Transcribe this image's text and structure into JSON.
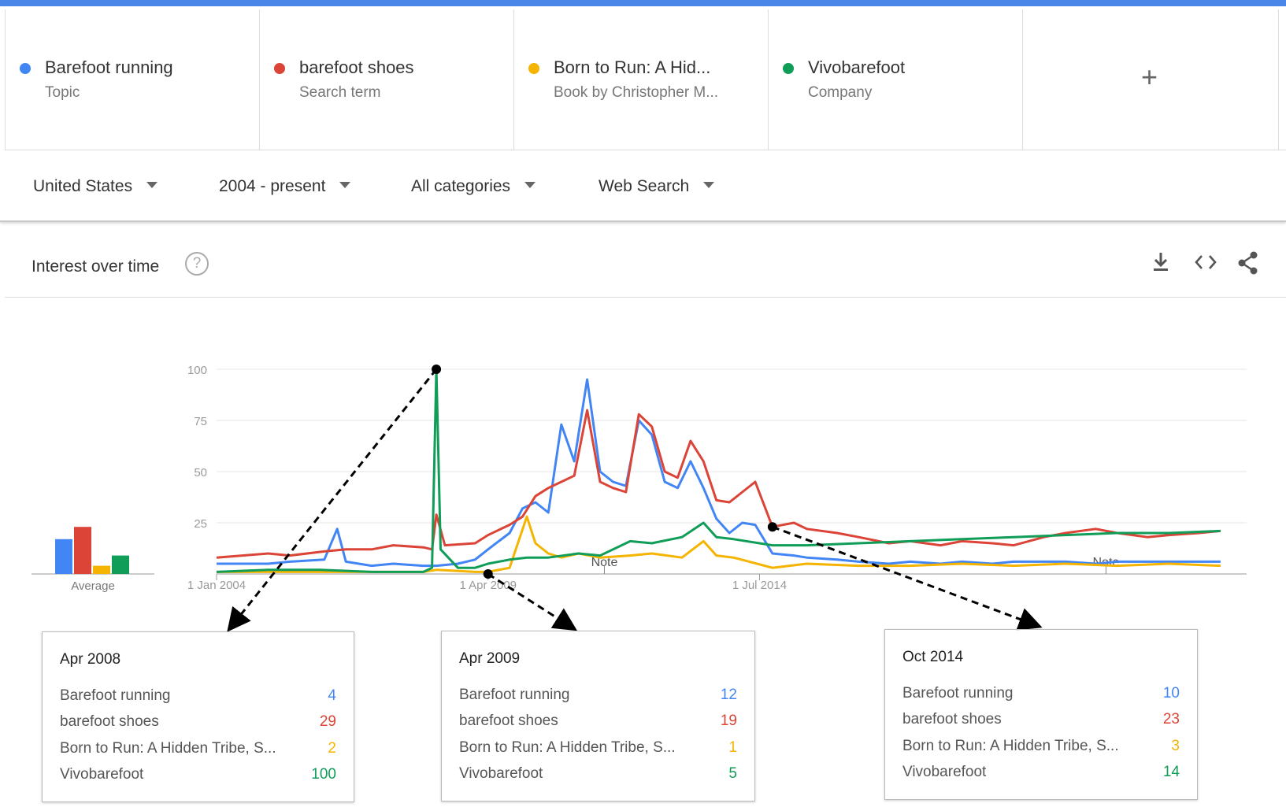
{
  "terms": [
    {
      "name": "Barefoot running",
      "sub": "Topic",
      "color": "#4285f4"
    },
    {
      "name": "barefoot shoes",
      "sub": "Search term",
      "color": "#db4437"
    },
    {
      "name": "Born to Run: A Hid...",
      "sub": "Book by Christopher M...",
      "color": "#f4b400"
    },
    {
      "name": "Vivobarefoot",
      "sub": "Company",
      "color": "#0f9d58"
    }
  ],
  "add_label": "+",
  "filters": {
    "region": "United States",
    "period": "2004 - present",
    "category": "All categories",
    "search_type": "Web Search"
  },
  "card": {
    "title": "Interest over time",
    "help": "?"
  },
  "icons": {
    "download": "download-icon",
    "embed": "embed-icon",
    "share": "share-icon"
  },
  "chart_data": {
    "type": "line",
    "title": "Interest over time",
    "x_ticks": [
      "1 Jan 2004",
      "1 Apr 2009",
      "1 Jul 2014"
    ],
    "y_ticks": [
      100,
      75,
      50,
      25
    ],
    "ylim": [
      0,
      100
    ],
    "average_label": "Average",
    "note_label": "Note",
    "averages": [
      17,
      23,
      4,
      9
    ],
    "grid": true,
    "series": [
      {
        "name": "Barefoot running",
        "color": "#4285f4",
        "points": [
          [
            "2004-01",
            5
          ],
          [
            "2005-01",
            5
          ],
          [
            "2005-06",
            6
          ],
          [
            "2006-02",
            7
          ],
          [
            "2006-05",
            22
          ],
          [
            "2006-07",
            6
          ],
          [
            "2007-01",
            4
          ],
          [
            "2007-06",
            5
          ],
          [
            "2008-01",
            4
          ],
          [
            "2008-04",
            4
          ],
          [
            "2008-09",
            5
          ],
          [
            "2009-01",
            7
          ],
          [
            "2009-04",
            12
          ],
          [
            "2009-09",
            20
          ],
          [
            "2009-12",
            32
          ],
          [
            "2010-03",
            35
          ],
          [
            "2010-06",
            30
          ],
          [
            "2010-09",
            73
          ],
          [
            "2010-12",
            55
          ],
          [
            "2011-03",
            95
          ],
          [
            "2011-06",
            50
          ],
          [
            "2011-09",
            45
          ],
          [
            "2011-12",
            43
          ],
          [
            "2012-03",
            75
          ],
          [
            "2012-06",
            68
          ],
          [
            "2012-09",
            45
          ],
          [
            "2012-12",
            42
          ],
          [
            "2013-03",
            55
          ],
          [
            "2013-06",
            42
          ],
          [
            "2013-09",
            27
          ],
          [
            "2013-12",
            20
          ],
          [
            "2014-03",
            25
          ],
          [
            "2014-06",
            24
          ],
          [
            "2014-10",
            10
          ],
          [
            "2015-03",
            9
          ],
          [
            "2015-06",
            8
          ],
          [
            "2016-01",
            7
          ],
          [
            "2016-06",
            6
          ],
          [
            "2017-01",
            5
          ],
          [
            "2017-06",
            6
          ],
          [
            "2018-01",
            5
          ],
          [
            "2018-06",
            6
          ],
          [
            "2019-01",
            5
          ],
          [
            "2019-06",
            6
          ],
          [
            "2020-01",
            6
          ],
          [
            "2020-06",
            6
          ],
          [
            "2021-01",
            5
          ],
          [
            "2021-06",
            6
          ],
          [
            "2022-01",
            6
          ],
          [
            "2022-06",
            6
          ],
          [
            "2023-01",
            6
          ],
          [
            "2023-06",
            6
          ]
        ]
      },
      {
        "name": "barefoot shoes",
        "color": "#db4437",
        "points": [
          [
            "2004-01",
            8
          ],
          [
            "2005-01",
            10
          ],
          [
            "2005-06",
            9
          ],
          [
            "2006-02",
            11
          ],
          [
            "2006-07",
            12
          ],
          [
            "2007-01",
            12
          ],
          [
            "2007-06",
            14
          ],
          [
            "2008-01",
            13
          ],
          [
            "2008-03",
            12
          ],
          [
            "2008-04",
            29
          ],
          [
            "2008-06",
            14
          ],
          [
            "2009-01",
            15
          ],
          [
            "2009-04",
            19
          ],
          [
            "2009-09",
            24
          ],
          [
            "2009-12",
            28
          ],
          [
            "2010-03",
            38
          ],
          [
            "2010-06",
            42
          ],
          [
            "2010-09",
            45
          ],
          [
            "2010-12",
            48
          ],
          [
            "2011-03",
            80
          ],
          [
            "2011-06",
            45
          ],
          [
            "2011-09",
            42
          ],
          [
            "2011-12",
            40
          ],
          [
            "2012-03",
            78
          ],
          [
            "2012-06",
            72
          ],
          [
            "2012-09",
            50
          ],
          [
            "2012-12",
            47
          ],
          [
            "2013-03",
            65
          ],
          [
            "2013-06",
            55
          ],
          [
            "2013-09",
            36
          ],
          [
            "2013-12",
            35
          ],
          [
            "2014-03",
            40
          ],
          [
            "2014-06",
            45
          ],
          [
            "2014-10",
            23
          ],
          [
            "2015-03",
            25
          ],
          [
            "2015-06",
            22
          ],
          [
            "2016-01",
            20
          ],
          [
            "2016-06",
            18
          ],
          [
            "2017-01",
            15
          ],
          [
            "2017-06",
            16
          ],
          [
            "2018-01",
            14
          ],
          [
            "2018-06",
            16
          ],
          [
            "2019-01",
            15
          ],
          [
            "2019-06",
            14
          ],
          [
            "2020-01",
            18
          ],
          [
            "2020-06",
            20
          ],
          [
            "2021-01",
            22
          ],
          [
            "2021-06",
            20
          ],
          [
            "2022-01",
            18
          ],
          [
            "2022-06",
            19
          ],
          [
            "2023-01",
            20
          ],
          [
            "2023-06",
            21
          ]
        ]
      },
      {
        "name": "Born to Run: A Hidden Tribe, S...",
        "color": "#f4b400",
        "points": [
          [
            "2004-01",
            1
          ],
          [
            "2005-01",
            1
          ],
          [
            "2006-01",
            1
          ],
          [
            "2007-01",
            1
          ],
          [
            "2008-01",
            1
          ],
          [
            "2008-04",
            2
          ],
          [
            "2009-01",
            1
          ],
          [
            "2009-04",
            1
          ],
          [
            "2009-09",
            3
          ],
          [
            "2010-01",
            28
          ],
          [
            "2010-03",
            15
          ],
          [
            "2010-06",
            10
          ],
          [
            "2010-09",
            8
          ],
          [
            "2011-01",
            10
          ],
          [
            "2011-06",
            8
          ],
          [
            "2012-01",
            9
          ],
          [
            "2012-06",
            10
          ],
          [
            "2013-01",
            8
          ],
          [
            "2013-06",
            16
          ],
          [
            "2013-09",
            9
          ],
          [
            "2014-01",
            8
          ],
          [
            "2014-10",
            3
          ],
          [
            "2015-06",
            5
          ],
          [
            "2016-06",
            4
          ],
          [
            "2017-06",
            4
          ],
          [
            "2018-06",
            5
          ],
          [
            "2019-06",
            4
          ],
          [
            "2020-06",
            5
          ],
          [
            "2021-06",
            4
          ],
          [
            "2022-06",
            5
          ],
          [
            "2023-06",
            4
          ]
        ]
      },
      {
        "name": "Vivobarefoot",
        "color": "#0f9d58",
        "points": [
          [
            "2004-01",
            1
          ],
          [
            "2005-01",
            2
          ],
          [
            "2006-01",
            2
          ],
          [
            "2007-01",
            1
          ],
          [
            "2008-01",
            1
          ],
          [
            "2008-03",
            3
          ],
          [
            "2008-04",
            100
          ],
          [
            "2008-05",
            12
          ],
          [
            "2008-09",
            3
          ],
          [
            "2009-01",
            3
          ],
          [
            "2009-04",
            5
          ],
          [
            "2009-09",
            7
          ],
          [
            "2010-01",
            8
          ],
          [
            "2010-06",
            8
          ],
          [
            "2011-01",
            10
          ],
          [
            "2011-06",
            9
          ],
          [
            "2012-01",
            16
          ],
          [
            "2012-06",
            15
          ],
          [
            "2013-01",
            18
          ],
          [
            "2013-06",
            25
          ],
          [
            "2013-09",
            18
          ],
          [
            "2014-01",
            17
          ],
          [
            "2014-10",
            14
          ],
          [
            "2015-06",
            14
          ],
          [
            "2016-06",
            15
          ],
          [
            "2017-06",
            16
          ],
          [
            "2018-06",
            17
          ],
          [
            "2019-06",
            18
          ],
          [
            "2020-06",
            19
          ],
          [
            "2021-06",
            20
          ],
          [
            "2022-06",
            20
          ],
          [
            "2023-06",
            21
          ]
        ]
      }
    ]
  },
  "tooltips": [
    {
      "title": "Apr 2008",
      "rows": [
        {
          "label": "Barefoot running",
          "value": "4",
          "color": "#4285f4"
        },
        {
          "label": "barefoot shoes",
          "value": "29",
          "color": "#db4437"
        },
        {
          "label": "Born to Run: A Hidden Tribe, S...",
          "value": "2",
          "color": "#f4b400"
        },
        {
          "label": "Vivobarefoot",
          "value": "100",
          "color": "#0f9d58"
        }
      ]
    },
    {
      "title": "Apr 2009",
      "rows": [
        {
          "label": "Barefoot running",
          "value": "12",
          "color": "#4285f4"
        },
        {
          "label": "barefoot shoes",
          "value": "19",
          "color": "#db4437"
        },
        {
          "label": "Born to Run: A Hidden Tribe, S...",
          "value": "1",
          "color": "#f4b400"
        },
        {
          "label": "Vivobarefoot",
          "value": "5",
          "color": "#0f9d58"
        }
      ]
    },
    {
      "title": "Oct 2014",
      "rows": [
        {
          "label": "Barefoot running",
          "value": "10",
          "color": "#4285f4"
        },
        {
          "label": "barefoot shoes",
          "value": "23",
          "color": "#db4437"
        },
        {
          "label": "Born to Run: A Hidden Tribe, S...",
          "value": "3",
          "color": "#f4b400"
        },
        {
          "label": "Vivobarefoot",
          "value": "14",
          "color": "#0f9d58"
        }
      ]
    }
  ]
}
